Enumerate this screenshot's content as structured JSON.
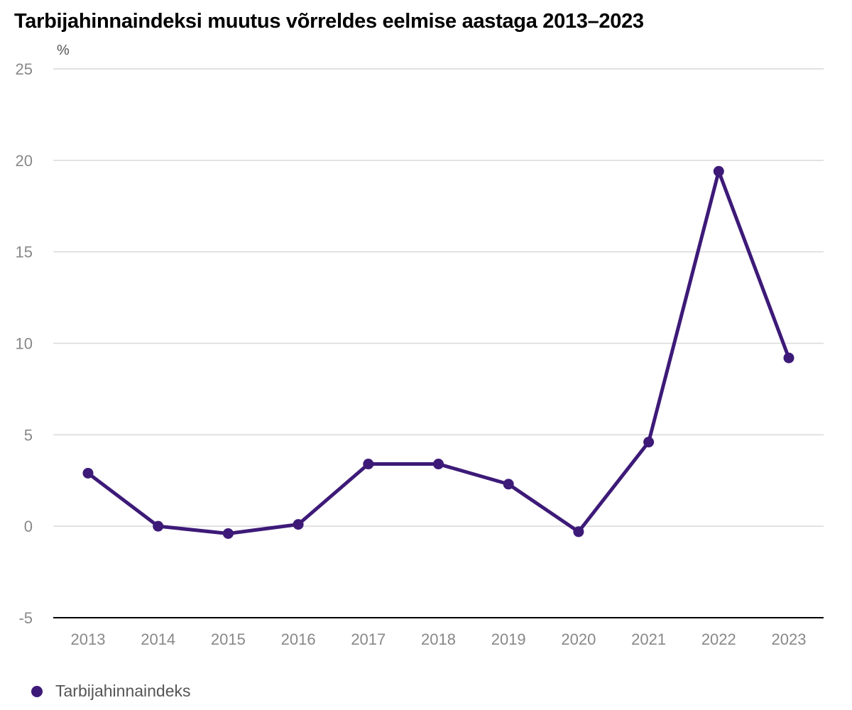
{
  "chart_data": {
    "type": "line",
    "title": "Tarbijahinnaindeksi muutus võrreldes eelmise aastaga 2013–2023",
    "ylabel": "%",
    "xlabel": "",
    "categories": [
      "2013",
      "2014",
      "2015",
      "2016",
      "2017",
      "2018",
      "2019",
      "2020",
      "2021",
      "2022",
      "2023"
    ],
    "series": [
      {
        "name": "Tarbijahinnaindeks",
        "values": [
          2.9,
          0.0,
          -0.4,
          0.1,
          3.4,
          3.4,
          2.3,
          -0.3,
          4.6,
          19.4,
          9.2
        ]
      }
    ],
    "ylim": [
      -5,
      25
    ],
    "yticks": [
      "25",
      "20",
      "15",
      "10",
      "5",
      "0",
      "-5"
    ],
    "grid": true,
    "legend_position": "bottom-left"
  },
  "colors": {
    "series": "#3d1a78",
    "grid": "#d9d9d9",
    "axis": "#000000",
    "tick_label": "#888888"
  }
}
